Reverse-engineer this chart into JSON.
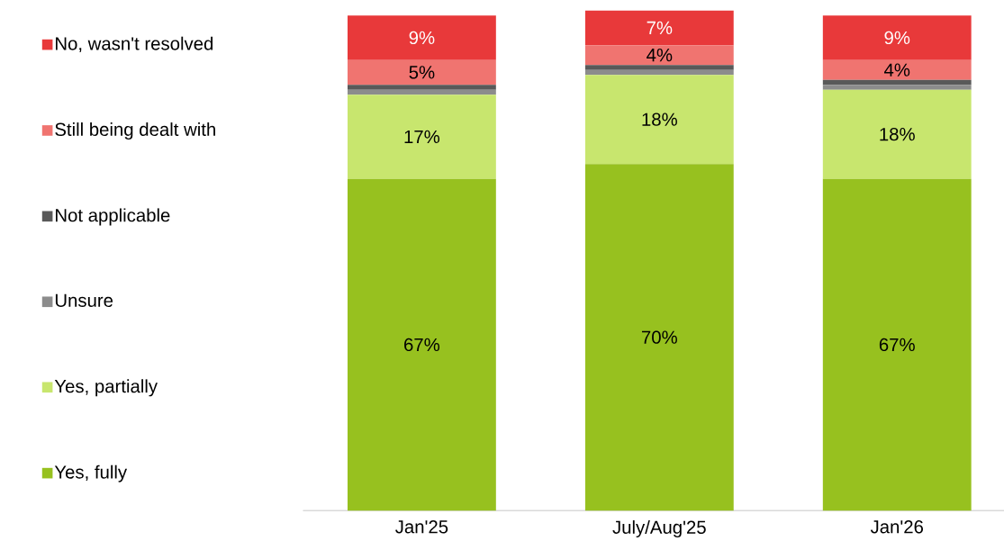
{
  "chart_data": {
    "type": "bar",
    "stacked": true,
    "categories": [
      "Jan'25",
      "July/Aug'25",
      "Jan'26"
    ],
    "legend": "left",
    "series": [
      {
        "name": "Yes, fully",
        "color": "#97c11f",
        "values": [
          67,
          70,
          67
        ],
        "value_labels": [
          "67%",
          "70%",
          "67%"
        ]
      },
      {
        "name": "Yes, partially",
        "color": "#c8e66e",
        "values": [
          17,
          18,
          18
        ],
        "value_labels": [
          "17%",
          "18%",
          "18%"
        ]
      },
      {
        "name": "Unsure",
        "color": "#8c8c8c",
        "values": [
          1,
          1,
          1
        ],
        "value_labels": [
          null,
          null,
          null
        ]
      },
      {
        "name": "Not applicable",
        "color": "#595959",
        "values": [
          1,
          1,
          1
        ],
        "value_labels": [
          null,
          null,
          null
        ]
      },
      {
        "name": "Still being dealt with",
        "color": "#f07470",
        "values": [
          5,
          4,
          4
        ],
        "value_labels": [
          "5%",
          "4%",
          "4%"
        ]
      },
      {
        "name": "No, wasn't resolved",
        "color": "#e8393a",
        "values": [
          9,
          7,
          9
        ],
        "value_labels": [
          "9%",
          "7%",
          "9%"
        ]
      }
    ]
  }
}
